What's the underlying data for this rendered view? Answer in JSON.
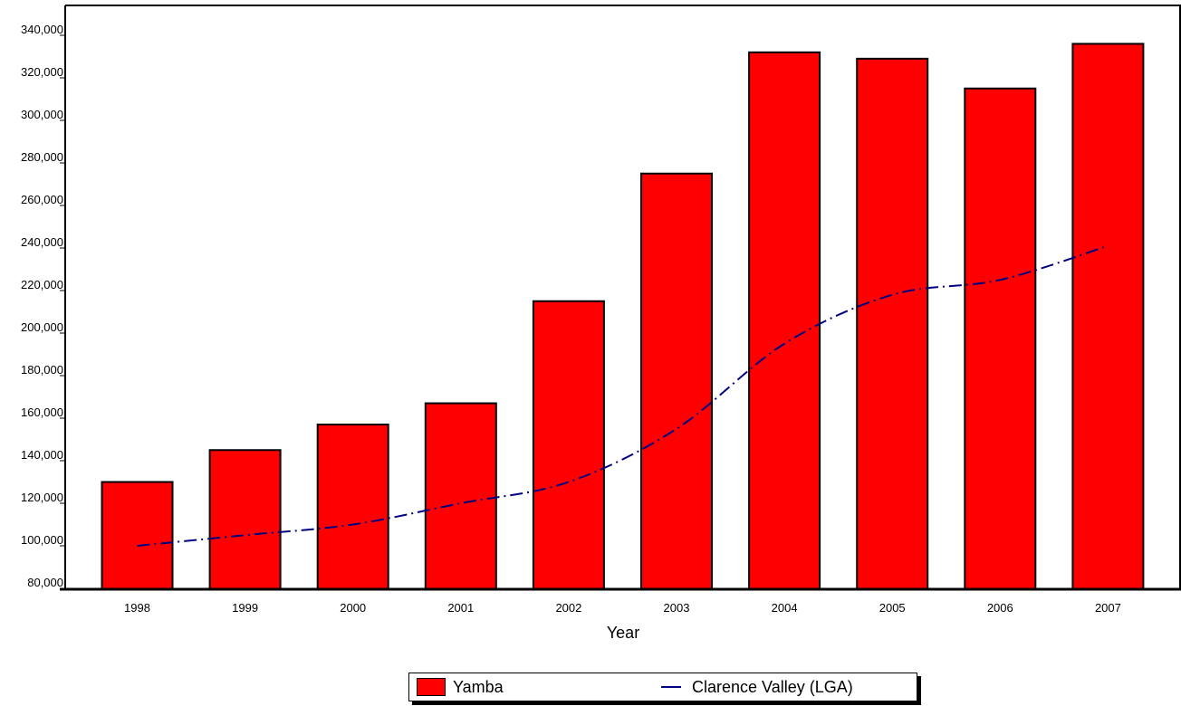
{
  "chart_data": {
    "type": "bar",
    "title": "",
    "xlabel": "Year",
    "ylabel": "",
    "ylim": [
      80000,
      350000
    ],
    "yticks": [
      "80,000",
      "100,000",
      "120,000",
      "140,000",
      "160,000",
      "180,000",
      "200,000",
      "220,000",
      "240,000",
      "260,000",
      "280,000",
      "300,000",
      "320,000",
      "340,000"
    ],
    "ytick_values": [
      80000,
      100000,
      120000,
      140000,
      160000,
      180000,
      200000,
      220000,
      240000,
      260000,
      280000,
      300000,
      320000,
      340000
    ],
    "categories": [
      "1998",
      "1999",
      "2000",
      "2001",
      "2002",
      "2003",
      "2004",
      "2005",
      "2006",
      "2007"
    ],
    "grid": false,
    "legend_position": "bottom",
    "series": [
      {
        "name": "Yamba",
        "kind": "bar",
        "color": "#ff0000",
        "values": [
          130000,
          145000,
          157000,
          167000,
          215000,
          275000,
          332000,
          329000,
          315000,
          336000
        ]
      },
      {
        "name": "Clarence Valley (LGA)",
        "kind": "line",
        "style": "dash-dot",
        "color": "#000080",
        "values": [
          100000,
          105000,
          110000,
          120000,
          130000,
          155000,
          195000,
          218000,
          225000,
          241000
        ]
      }
    ]
  }
}
